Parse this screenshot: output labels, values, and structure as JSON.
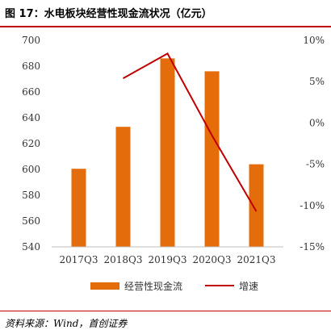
{
  "header": {
    "title": "图 17：水电板块经营性现金流状况（亿元）"
  },
  "footer": {
    "source": "资料来源：Wind，首创证券"
  },
  "chart_data": {
    "type": "bar",
    "categories": [
      "2017Q3",
      "2018Q3",
      "2019Q3",
      "2020Q3",
      "2021Q3"
    ],
    "series": [
      {
        "name": "经营性现金流",
        "type": "bar",
        "axis": "left",
        "color": "#e46c0a",
        "values": [
          600.5,
          633,
          686,
          676,
          604
        ]
      },
      {
        "name": "增速",
        "type": "line",
        "axis": "right",
        "color": "#c00000",
        "values": [
          null,
          5.4,
          8.4,
          -1.5,
          -10.7
        ]
      }
    ],
    "left_axis": {
      "min": 540,
      "max": 700,
      "ticks": [
        "540",
        "560",
        "580",
        "600",
        "620",
        "640",
        "660",
        "680",
        "700"
      ]
    },
    "right_axis": {
      "min": -15,
      "max": 10,
      "ticks": [
        "-15%",
        "-10%",
        "-5%",
        "0%",
        "5%",
        "10%"
      ]
    },
    "legend_position": "bottom",
    "grid": false
  }
}
